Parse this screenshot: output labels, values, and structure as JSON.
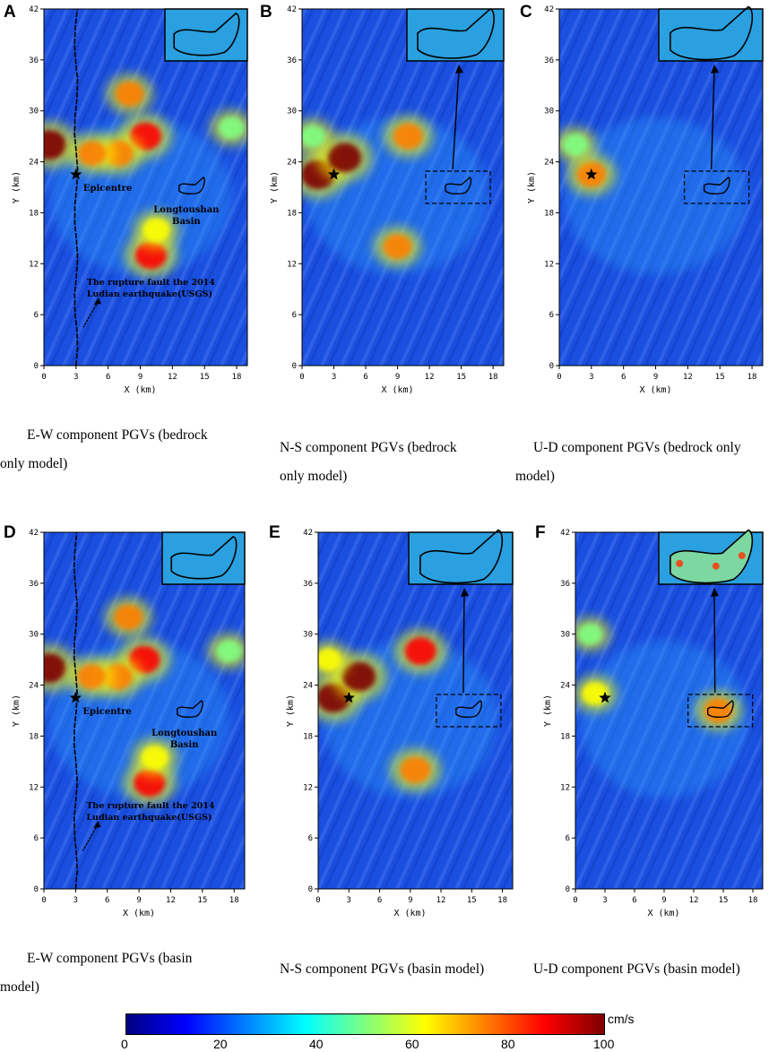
{
  "figure": {
    "panels": [
      {
        "id": "A",
        "letter": "A",
        "component": "E-W",
        "model": "bedrock",
        "caption_l1": "E-W component PGVs (bedrock",
        "caption_l2": "only model)",
        "xlabel": "X (km)",
        "ylabel": "Y (km)",
        "annotated": true
      },
      {
        "id": "B",
        "letter": "B",
        "component": "N-S",
        "model": "bedrock",
        "caption_l1": "N-S component PGVs (bedrock",
        "caption_l2": "only model)",
        "xlabel": "X (km)",
        "ylabel": "Y (km)",
        "annotated": false
      },
      {
        "id": "C",
        "letter": "C",
        "component": "U-D",
        "model": "bedrock",
        "caption_l1": "U-D component PGVs (bedrock only",
        "caption_l2": "model)",
        "xlabel": "X (km)",
        "ylabel": "Y (km)",
        "annotated": false
      },
      {
        "id": "D",
        "letter": "D",
        "component": "E-W",
        "model": "basin",
        "caption_l1": "E-W component PGVs (basin",
        "caption_l2": "model)",
        "xlabel": "X (km)",
        "ylabel": "Y (km)",
        "annotated": true
      },
      {
        "id": "E",
        "letter": "E",
        "component": "N-S",
        "model": "basin",
        "caption_l1": "N-S component PGVs (basin model)",
        "caption_l2": "",
        "xlabel": "X (km)",
        "ylabel": "Y (km)",
        "annotated": false
      },
      {
        "id": "F",
        "letter": "F",
        "component": "U-D",
        "model": "basin",
        "caption_l1": "U-D component PGVs (basin model)",
        "caption_l2": "",
        "xlabel": "X (km)",
        "ylabel": "Y (km)",
        "annotated": false
      }
    ],
    "annotations": {
      "epicentre": "Epicentre",
      "basin_l1": "Longtoushan",
      "basin_l2": "Basin",
      "fault_l1": "The rupture fault the 2014",
      "fault_l2": "Ludian earthquake(USGS)"
    },
    "colorbar": {
      "unit": "cm/s",
      "ticks": [
        "0",
        "20",
        "40",
        "60",
        "80",
        "100"
      ],
      "range": [
        0,
        100
      ],
      "stops": [
        "#00007f",
        "#0000ff",
        "#0080ff",
        "#00ffff",
        "#80ff80",
        "#ffff00",
        "#ff8000",
        "#ff0000",
        "#7f0000"
      ]
    },
    "colors": {
      "background": "#1a4fe0",
      "frame": "#000000"
    }
  },
  "chart_data": {
    "type": "heatmap",
    "title": "",
    "xlabel": "X (km)",
    "ylabel": "Y (km)",
    "xlim": [
      0,
      19
    ],
    "ylim": [
      0,
      42
    ],
    "x_ticks": [
      "0",
      "3",
      "6",
      "9",
      "12",
      "15",
      "18"
    ],
    "y_ticks": [
      "0",
      "6",
      "12",
      "18",
      "24",
      "30",
      "36",
      "42"
    ],
    "epicentre_km": [
      3,
      22.5
    ],
    "colorbar": {
      "label": "cm/s",
      "min": 0,
      "max": 100
    },
    "panels": [
      {
        "id": "A",
        "component": "E-W",
        "model": "bedrock only",
        "hotspots": [
          {
            "x": 0.5,
            "y": 26,
            "pgv": 95
          },
          {
            "x": 9.5,
            "y": 27,
            "pgv": 85
          },
          {
            "x": 8,
            "y": 32,
            "pgv": 70
          },
          {
            "x": 7,
            "y": 25,
            "pgv": 75
          },
          {
            "x": 10,
            "y": 13,
            "pgv": 85
          },
          {
            "x": 10.5,
            "y": 16,
            "pgv": 65
          },
          {
            "x": 4.5,
            "y": 25,
            "pgv": 70
          },
          {
            "x": 17.5,
            "y": 28,
            "pgv": 55
          }
        ]
      },
      {
        "id": "B",
        "component": "N-S",
        "model": "bedrock only",
        "hotspots": [
          {
            "x": 1.5,
            "y": 22.5,
            "pgv": 95
          },
          {
            "x": 4,
            "y": 24.5,
            "pgv": 95
          },
          {
            "x": 10,
            "y": 27,
            "pgv": 75
          },
          {
            "x": 9,
            "y": 14,
            "pgv": 70
          },
          {
            "x": 1,
            "y": 27,
            "pgv": 55
          }
        ]
      },
      {
        "id": "C",
        "component": "U-D",
        "model": "bedrock only",
        "hotspots": [
          {
            "x": 3,
            "y": 22.5,
            "pgv": 75
          },
          {
            "x": 1.5,
            "y": 26,
            "pgv": 55
          }
        ]
      },
      {
        "id": "D",
        "component": "E-W",
        "model": "basin",
        "hotspots": [
          {
            "x": 0.5,
            "y": 26,
            "pgv": 95
          },
          {
            "x": 9.5,
            "y": 27,
            "pgv": 85
          },
          {
            "x": 8,
            "y": 32,
            "pgv": 70
          },
          {
            "x": 7,
            "y": 25,
            "pgv": 75
          },
          {
            "x": 10,
            "y": 12.5,
            "pgv": 85
          },
          {
            "x": 10.5,
            "y": 15.5,
            "pgv": 65
          },
          {
            "x": 4.5,
            "y": 25,
            "pgv": 70
          },
          {
            "x": 17.5,
            "y": 28,
            "pgv": 55
          }
        ]
      },
      {
        "id": "E",
        "component": "N-S",
        "model": "basin",
        "hotspots": [
          {
            "x": 1.5,
            "y": 22.5,
            "pgv": 95
          },
          {
            "x": 4,
            "y": 25,
            "pgv": 95
          },
          {
            "x": 10,
            "y": 28,
            "pgv": 85
          },
          {
            "x": 9.5,
            "y": 14,
            "pgv": 80
          },
          {
            "x": 1,
            "y": 27,
            "pgv": 60
          }
        ]
      },
      {
        "id": "F",
        "component": "U-D",
        "model": "basin",
        "hotspots": [
          {
            "x": 2,
            "y": 23,
            "pgv": 60
          },
          {
            "x": 1.5,
            "y": 30,
            "pgv": 50
          },
          {
            "x": 14.5,
            "y": 21,
            "pgv": 70
          }
        ]
      }
    ]
  }
}
